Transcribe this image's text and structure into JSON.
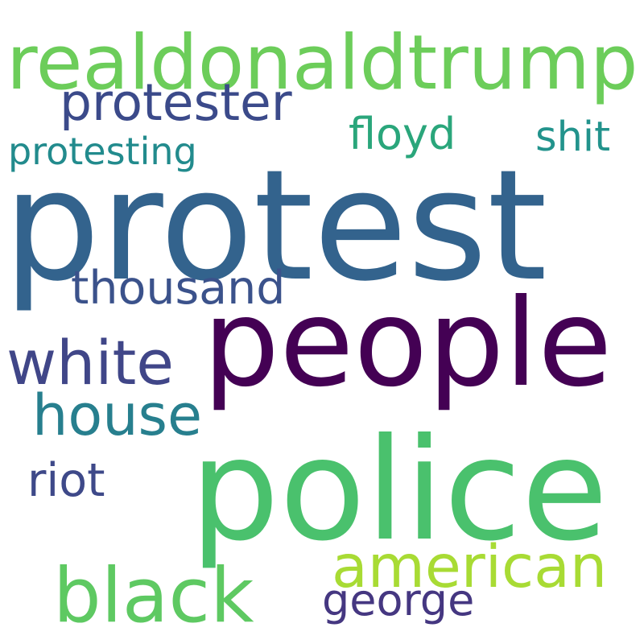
{
  "words": [
    {
      "text": "realdonaldtrump",
      "color": "#6ccd5a"
    },
    {
      "text": "protester",
      "color": "#3b4a8a"
    },
    {
      "text": "floyd",
      "color": "#2aa67b"
    },
    {
      "text": "shit",
      "color": "#22938c"
    },
    {
      "text": "protesting",
      "color": "#228b8d"
    },
    {
      "text": "protest",
      "color": "#33638d"
    },
    {
      "text": "thousand",
      "color": "#3b528b"
    },
    {
      "text": "people",
      "color": "#440154"
    },
    {
      "text": "white",
      "color": "#404688"
    },
    {
      "text": "house",
      "color": "#277f8e"
    },
    {
      "text": "riot",
      "color": "#3e4989"
    },
    {
      "text": "police",
      "color": "#4ac16d"
    },
    {
      "text": "american",
      "color": "#a8db34"
    },
    {
      "text": "black",
      "color": "#5ec962"
    },
    {
      "text": "george",
      "color": "#453781"
    }
  ]
}
